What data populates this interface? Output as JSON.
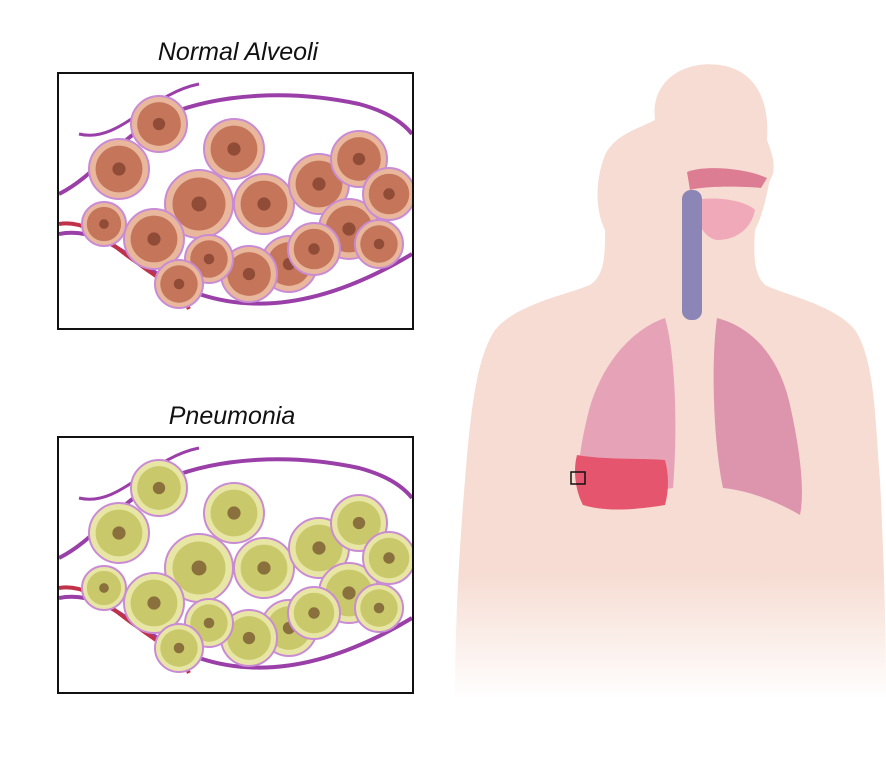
{
  "panels": [
    {
      "title": "Normal Alveoli",
      "fill": "#c4755a",
      "rim": "#e9b79c",
      "core": "#7a3a28"
    },
    {
      "title": "Pneumonia",
      "fill": "#c9c86a",
      "rim": "#e8e6a5",
      "core": "#6d4a2a"
    }
  ],
  "colors": {
    "capillary": "#9a3fa8",
    "capillary_light": "#c98bd4",
    "artery": "#c0324a",
    "body": "#f6dcd2",
    "lung_right": "#e6a3b8",
    "lung_left": "#dd95ad",
    "inflamed": "#e5566e",
    "trachea": "#8c86b6"
  }
}
